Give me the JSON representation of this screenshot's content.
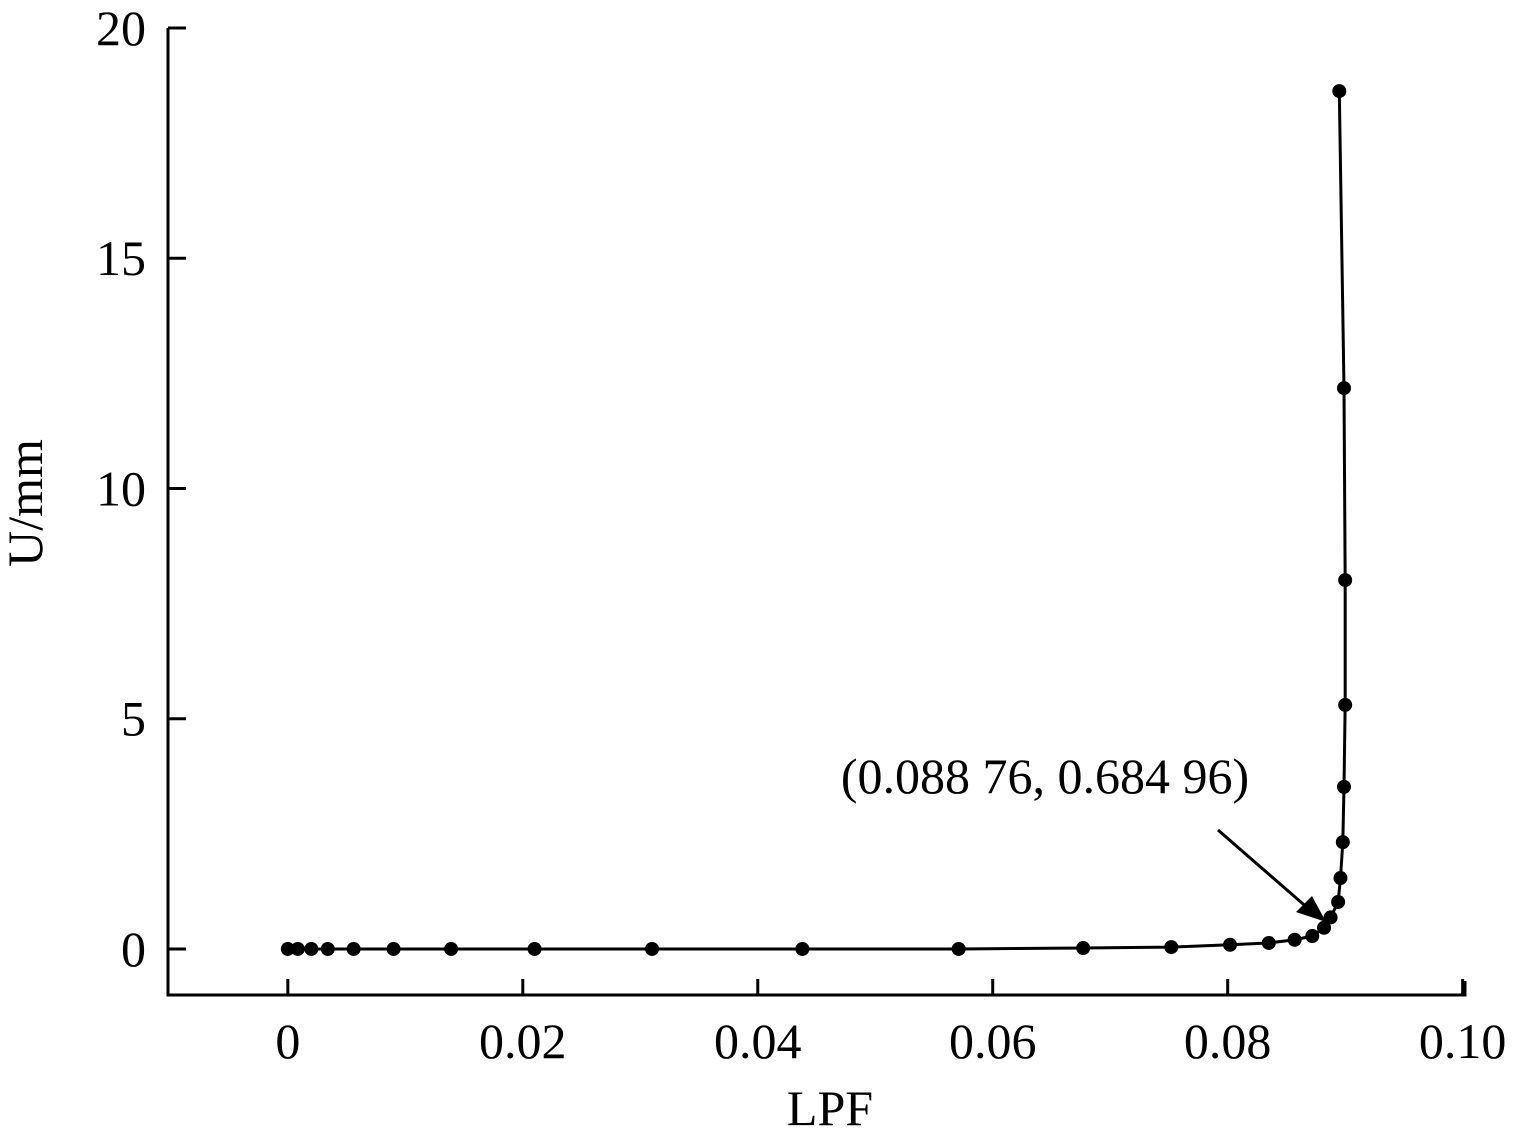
{
  "chart_data": {
    "type": "line",
    "x_label": "LPF",
    "y_label": "U/mm",
    "annotation": "(0.088 76, 0.684 96)",
    "series": [
      {
        "name": "U",
        "color": "#000000",
        "x": [
          0,
          0.00085,
          0.002,
          0.0034,
          0.0056,
          0.009,
          0.0139,
          0.021,
          0.031,
          0.0438,
          0.0571,
          0.0677,
          0.0752,
          0.0802,
          0.0835,
          0.0857,
          0.0872,
          0.0882,
          0.08876,
          0.0894,
          0.0896,
          0.0898,
          0.0899,
          0.09,
          0.09,
          0.0899,
          0.0895
        ],
        "values": [
          0,
          0,
          0,
          0,
          0,
          0,
          0,
          0,
          0,
          0,
          0,
          0.02,
          0.04,
          0.09,
          0.13,
          0.2,
          0.28,
          0.46,
          0.68496,
          1.02,
          1.54,
          2.32,
          3.52,
          5.3,
          8.01,
          12.18,
          18.63
        ]
      }
    ],
    "xlim": [
      -0.0102,
      0.1002
    ],
    "ylim": [
      -1,
      20
    ],
    "xticks": [
      0,
      0.02,
      0.04,
      0.06,
      0.08,
      {
        "value": 0.1,
        "label": "0.10"
      }
    ],
    "yticks": [
      0,
      5,
      10,
      15,
      20
    ]
  }
}
